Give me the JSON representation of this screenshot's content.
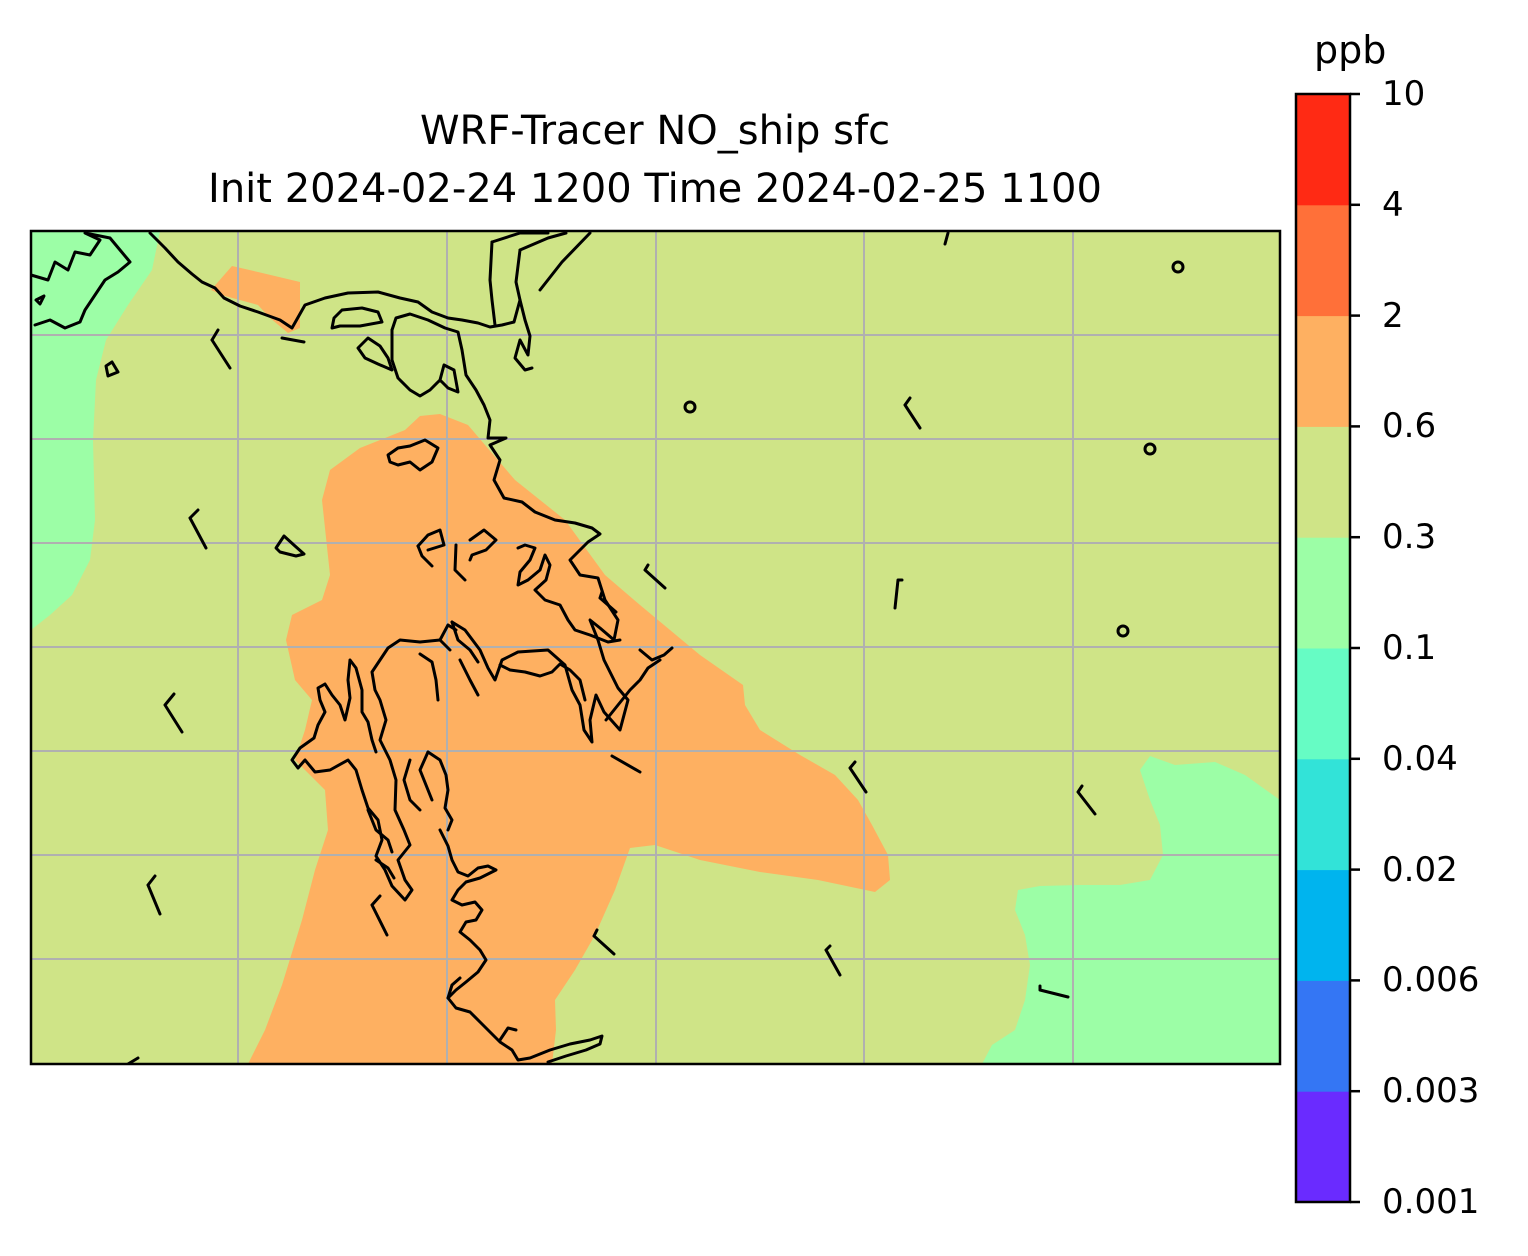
{
  "title": {
    "line1": "WRF-Tracer NO_ship sfc",
    "line2": "Init 2024-02-24 1200 Time 2024-02-25 1100"
  },
  "colorbar": {
    "unit": "ppb",
    "tick_labels": [
      "0.001",
      "0.003",
      "0.006",
      "0.02",
      "0.04",
      "0.1",
      "0.3",
      "0.6",
      "2",
      "4",
      "10"
    ],
    "colors": [
      "#6a2bff",
      "#3476f4",
      "#00b4ee",
      "#32e3d8",
      "#66fcc4",
      "#9cfea6",
      "#cfe487",
      "#feb061",
      "#ff7039",
      "#ff2a14"
    ]
  },
  "field": {
    "background_level": "0.3-0.6",
    "regions": [
      {
        "name": "northwest-low",
        "level": "0.1-0.3"
      },
      {
        "name": "east-low",
        "level": "0.1-0.3"
      },
      {
        "name": "coastal-plume",
        "level": "0.6-2"
      }
    ]
  },
  "grid": {
    "visible": true,
    "color": "#b0b0b0"
  }
}
